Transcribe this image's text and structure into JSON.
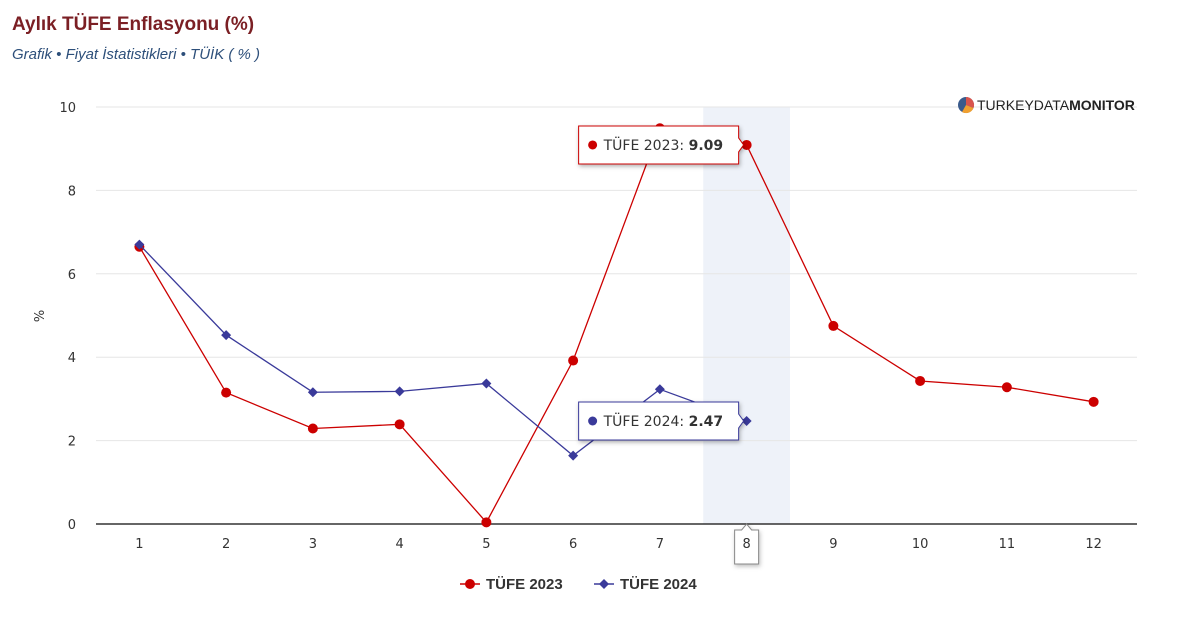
{
  "header": {
    "title": "Aylık TÜFE Enflasyonu (%)",
    "subtitle": "Grafik • Fiyat İstatistikleri • TÜİK ( % )"
  },
  "brand": {
    "light": "TURKEY",
    "medium": "DATA",
    "bold": "MONITOR"
  },
  "chart_data": {
    "type": "line",
    "ylabel": "%",
    "xlabel": "",
    "ylim": [
      0,
      10
    ],
    "y_ticks": [
      0,
      2,
      4,
      6,
      8,
      10
    ],
    "categories": [
      "1",
      "2",
      "3",
      "4",
      "5",
      "6",
      "7",
      "8",
      "9",
      "10",
      "11",
      "12"
    ],
    "series": [
      {
        "name": "TÜFE 2023",
        "color": "#cc0000",
        "marker": "circle",
        "values": [
          6.65,
          3.15,
          2.29,
          2.39,
          0.04,
          3.92,
          9.49,
          9.09,
          4.75,
          3.43,
          3.28,
          2.93
        ]
      },
      {
        "name": "TÜFE 2024",
        "color": "#3a3a9a",
        "marker": "diamond",
        "values": [
          6.7,
          4.53,
          3.16,
          3.18,
          3.37,
          1.64,
          3.23,
          2.47,
          null,
          null,
          null,
          null
        ]
      }
    ],
    "highlight_category": "8",
    "tooltips": [
      {
        "series": "TÜFE 2023",
        "label": "TÜFE 2023: ",
        "value": "9.09"
      },
      {
        "series": "TÜFE 2024",
        "label": "TÜFE 2024: ",
        "value": "2.47"
      }
    ],
    "grid": true,
    "legend": "bottom-center"
  }
}
